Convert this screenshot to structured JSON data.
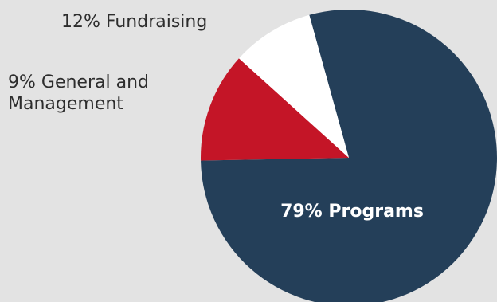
{
  "chart_data": {
    "type": "pie",
    "slices": [
      {
        "label": "79% Programs",
        "value": 79,
        "color": "#243f59"
      },
      {
        "label": "12% Fundraising",
        "value": 12,
        "color": "#c41527"
      },
      {
        "label": "9% General and Management",
        "label_lines": [
          "9% General and",
          "Management"
        ],
        "value": 9,
        "color": "#ffffff"
      }
    ]
  }
}
